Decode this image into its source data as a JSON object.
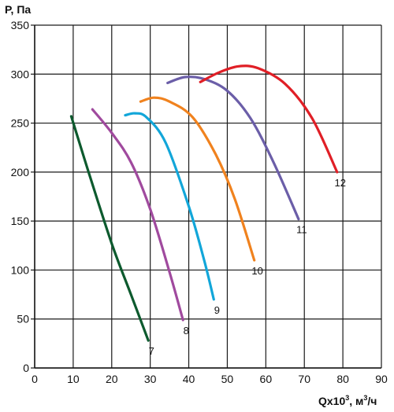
{
  "chart_data": {
    "type": "line",
    "ylabel": "P, Па",
    "xlabel": {
      "base": "Qx10",
      "exp": "3",
      "unit_prefix": ", м",
      "unit_exp": "3",
      "unit_suffix": "/ч"
    },
    "xlim": [
      0,
      90
    ],
    "ylim": [
      0,
      350
    ],
    "xticks": [
      0,
      10,
      20,
      30,
      40,
      50,
      60,
      70,
      80,
      90
    ],
    "yticks": [
      0,
      50,
      100,
      150,
      200,
      250,
      300,
      350
    ],
    "grid": true,
    "series": [
      {
        "name": "7",
        "color": "#0d5a2e",
        "points": [
          [
            9.5,
            257
          ],
          [
            14,
            200
          ],
          [
            20,
            127
          ],
          [
            25,
            75
          ],
          [
            29.5,
            28
          ]
        ]
      },
      {
        "name": "8",
        "color": "#a04a9e",
        "points": [
          [
            15,
            264
          ],
          [
            20,
            240
          ],
          [
            25,
            210
          ],
          [
            30,
            162
          ],
          [
            35,
            98
          ],
          [
            38.5,
            49
          ]
        ]
      },
      {
        "name": "9",
        "color": "#12a6d9",
        "points": [
          [
            23.5,
            258
          ],
          [
            26,
            260
          ],
          [
            29,
            256
          ],
          [
            34,
            230
          ],
          [
            40,
            165
          ],
          [
            44,
            110
          ],
          [
            46.5,
            70
          ]
        ]
      },
      {
        "name": "10",
        "color": "#f0821e",
        "points": [
          [
            27.5,
            272
          ],
          [
            31,
            276
          ],
          [
            35,
            272
          ],
          [
            41,
            256
          ],
          [
            47,
            218
          ],
          [
            52,
            172
          ],
          [
            57,
            110
          ]
        ]
      },
      {
        "name": "11",
        "color": "#6b5ea8",
        "points": [
          [
            34.5,
            291
          ],
          [
            39,
            297
          ],
          [
            44,
            295
          ],
          [
            50,
            283
          ],
          [
            56,
            255
          ],
          [
            62,
            210
          ],
          [
            68.5,
            152
          ]
        ]
      },
      {
        "name": "12",
        "color": "#e01f26",
        "points": [
          [
            43,
            292
          ],
          [
            48,
            302
          ],
          [
            53,
            308
          ],
          [
            58,
            306
          ],
          [
            65,
            290
          ],
          [
            72,
            255
          ],
          [
            78.5,
            200
          ]
        ]
      }
    ]
  }
}
